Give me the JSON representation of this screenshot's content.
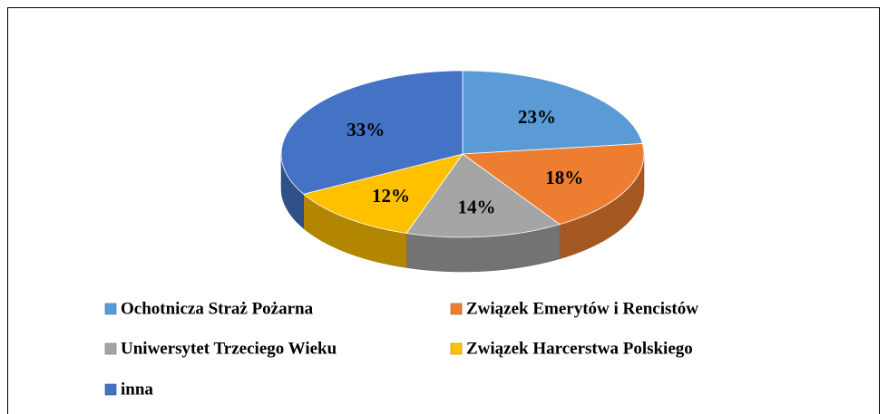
{
  "chart_data": {
    "type": "pie",
    "categories": [
      "Ochotnicza Straż Pożarna",
      "Związek Emerytów i Rencistów",
      "Uniwersytet Trzeciego Wieku",
      "Związek Harcerstwa Polskiego",
      "inna"
    ],
    "values": [
      23,
      18,
      14,
      12,
      33
    ],
    "value_labels": [
      "23%",
      "18%",
      "14%",
      "12%",
      "33%"
    ],
    "colors": [
      "#5b9bd5",
      "#ed7d31",
      "#a5a5a5",
      "#ffc000",
      "#4472c4"
    ],
    "legend": "bottom"
  }
}
